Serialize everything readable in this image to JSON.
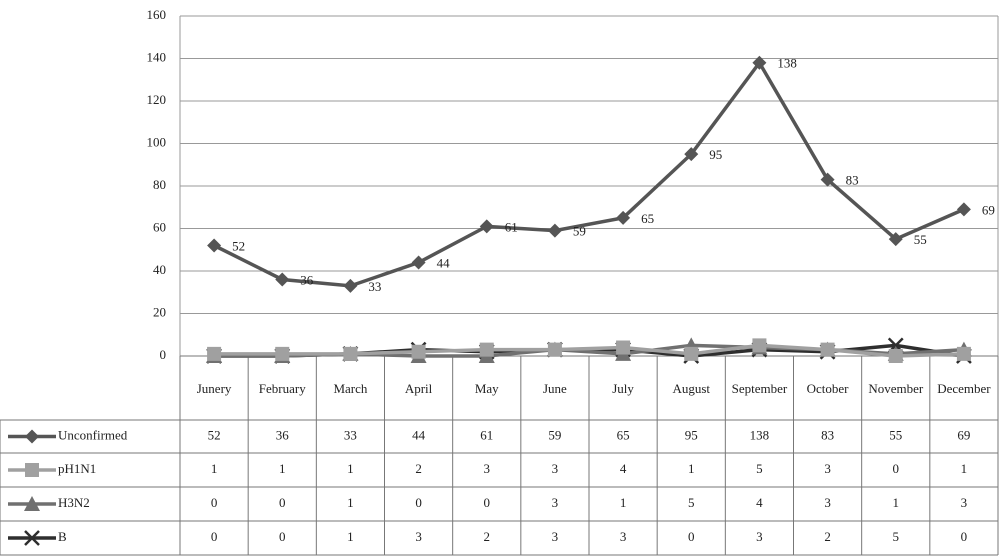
{
  "chart_data": {
    "type": "line",
    "categories": [
      "Junery",
      "February",
      "March",
      "April",
      "May",
      "June",
      "July",
      "August",
      "September",
      "October",
      "November",
      "December"
    ],
    "series": [
      {
        "name": "Unconfirmed",
        "color": "#555555",
        "marker": "diamond",
        "values": [
          52,
          36,
          33,
          44,
          61,
          59,
          65,
          95,
          138,
          83,
          55,
          69
        ]
      },
      {
        "name": "pH1N1",
        "color": "#a0a0a0",
        "marker": "square",
        "values": [
          1,
          1,
          1,
          2,
          3,
          3,
          4,
          1,
          5,
          3,
          0,
          1
        ]
      },
      {
        "name": "H3N2",
        "color": "#707070",
        "marker": "triangle",
        "values": [
          0,
          0,
          1,
          0,
          0,
          3,
          1,
          5,
          4,
          3,
          1,
          3
        ]
      },
      {
        "name": "B",
        "color": "#2e2e2e",
        "marker": "x",
        "values": [
          0,
          0,
          1,
          3,
          2,
          3,
          3,
          0,
          3,
          2,
          5,
          0
        ]
      }
    ],
    "data_labels_series": 0,
    "ylim": [
      0,
      160
    ],
    "yticks": [
      0,
      20,
      40,
      60,
      80,
      100,
      120,
      140,
      160
    ],
    "grid": true
  }
}
